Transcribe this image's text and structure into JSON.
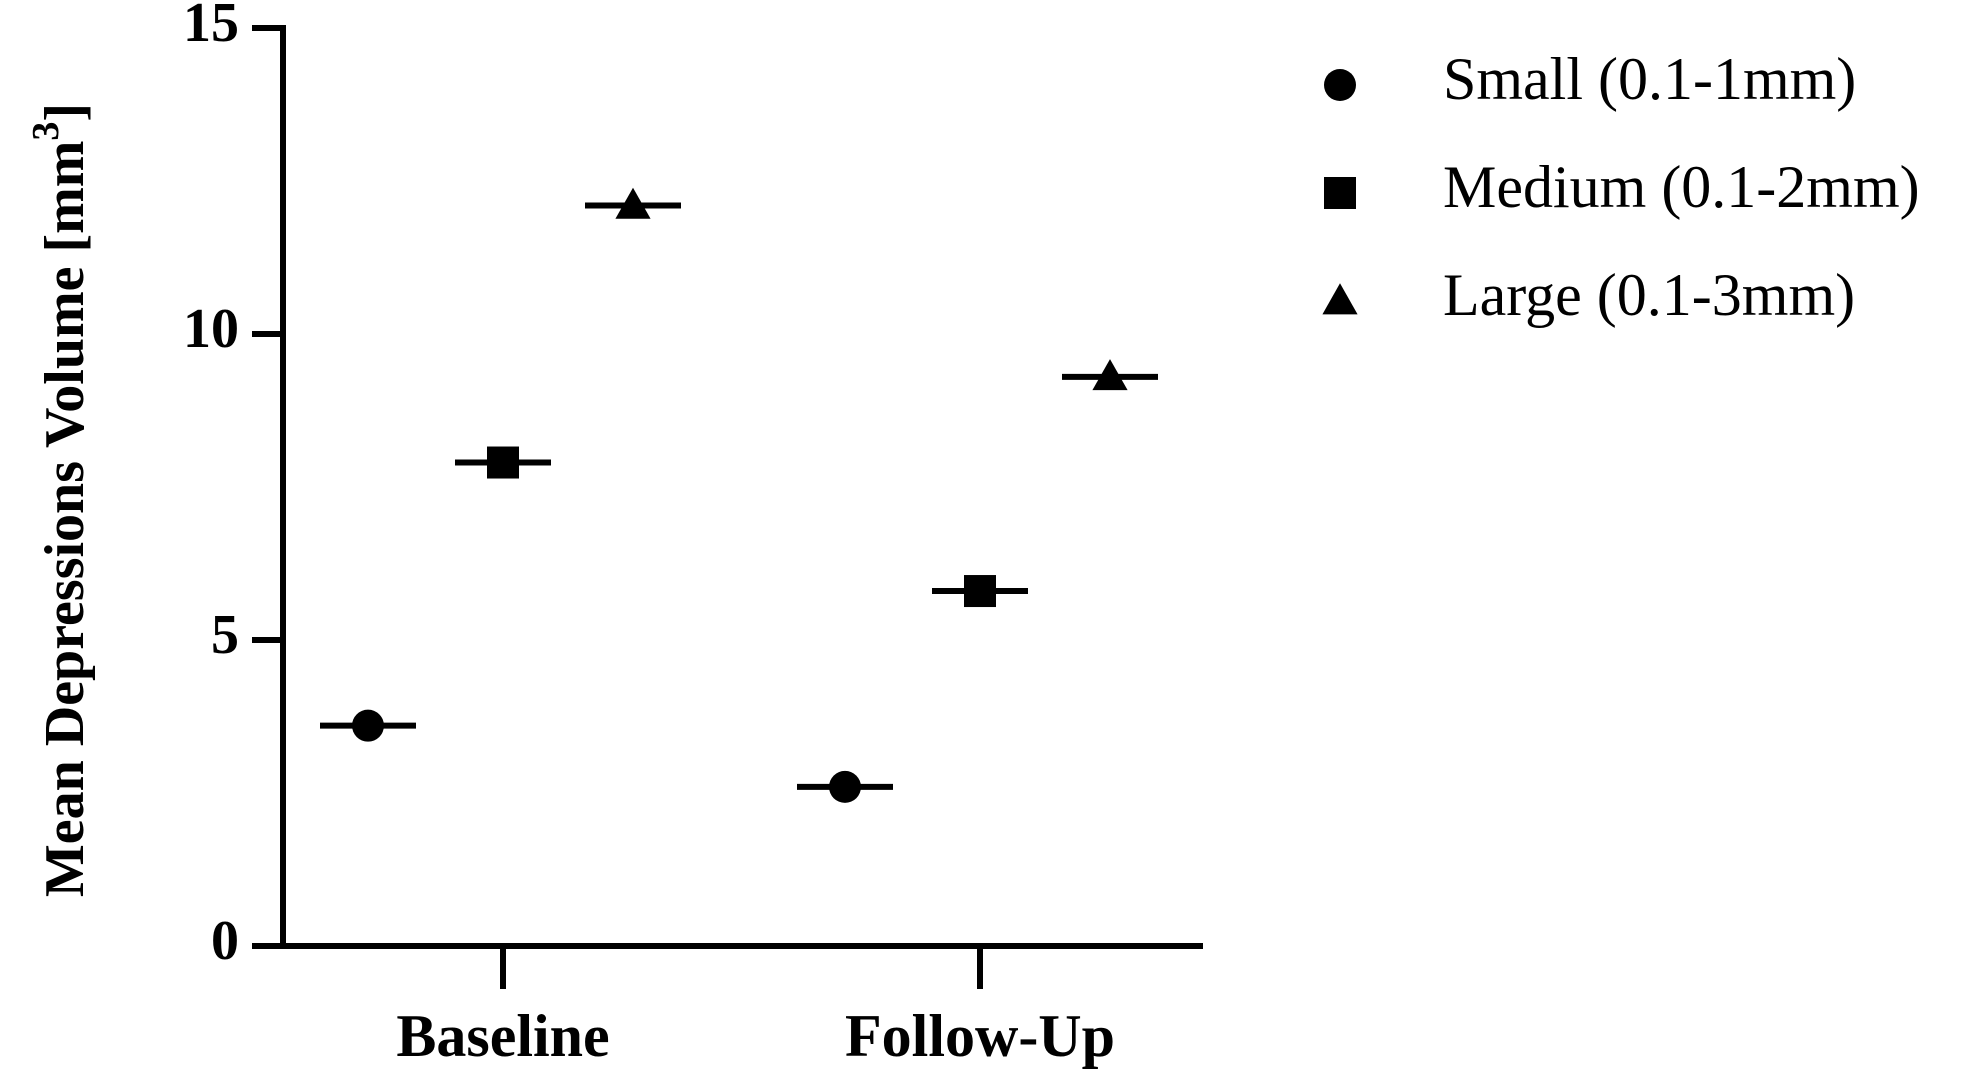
{
  "chart_data": {
    "type": "scatter",
    "title": "",
    "xlabel": "",
    "ylabel": "Mean Depressions Volume [mm",
    "ylabel_superscript": "3",
    "ylabel_suffix": "]",
    "categories": [
      "Baseline",
      "Follow-Up"
    ],
    "ylim": [
      0,
      15
    ],
    "yticks": [
      "0",
      "5",
      "10",
      "15"
    ],
    "grid": false,
    "legend_position": "top-right",
    "series": [
      {
        "name": "Small (0.1-1mm)",
        "marker": "circle",
        "color": "#000000",
        "values": [
          3.6,
          2.6
        ]
      },
      {
        "name": "Medium (0.1-2mm)",
        "marker": "square",
        "color": "#000000",
        "values": [
          7.9,
          5.8
        ]
      },
      {
        "name": "Large (0.1-3mm)",
        "marker": "triangle",
        "color": "#000000",
        "values": [
          12.1,
          9.3
        ]
      }
    ]
  }
}
